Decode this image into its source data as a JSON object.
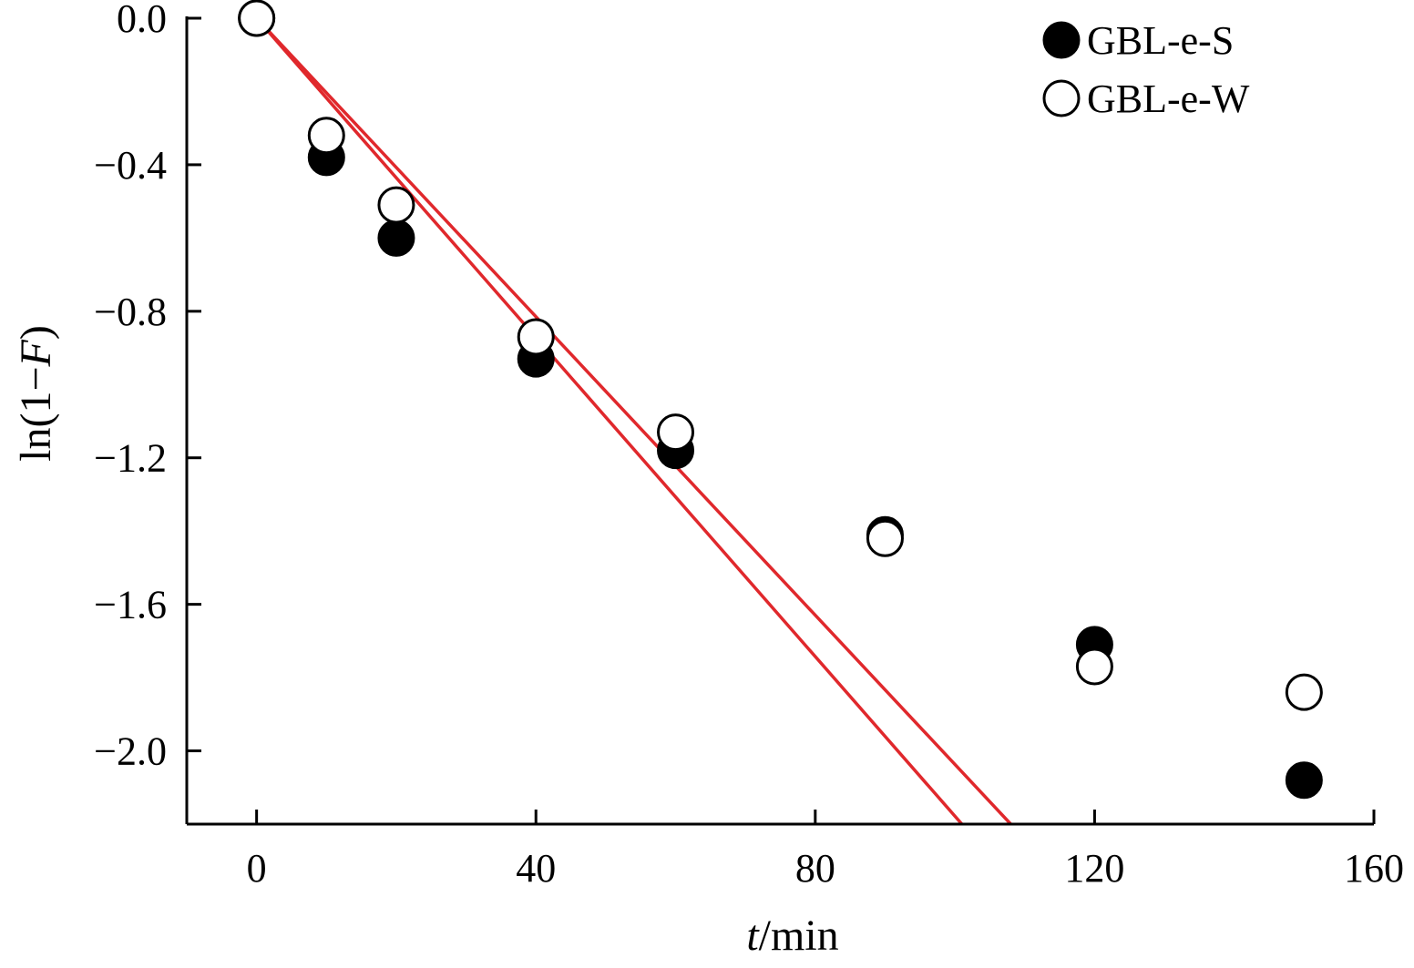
{
  "chart_data": {
    "type": "scatter",
    "xlabel": {
      "italic": "t",
      "rest": "/min"
    },
    "ylabel": {
      "pre": "ln(1−",
      "italic": "F",
      "post": ")"
    },
    "xlim": [
      -10,
      160
    ],
    "ylim": [
      -2.2,
      0.0
    ],
    "xticks": [
      0,
      40,
      80,
      120,
      160
    ],
    "xtick_labels": [
      "0",
      "40",
      "80",
      "120",
      "160"
    ],
    "yticks": [
      0.0,
      -0.4,
      -0.8,
      -1.2,
      -1.6,
      -2.0
    ],
    "ytick_labels": [
      "0.0",
      "−0.4",
      "−0.8",
      "−1.2",
      "−1.6",
      "−2.0"
    ],
    "grid": false,
    "legend_position": "top-right",
    "series": [
      {
        "name": "GBL-e-S",
        "marker": "filled-circle",
        "color": "#000000",
        "x": [
          0,
          10,
          20,
          40,
          60,
          90,
          120,
          150
        ],
        "y": [
          0.0,
          -0.38,
          -0.6,
          -0.93,
          -1.18,
          -1.41,
          -1.71,
          -2.08
        ]
      },
      {
        "name": "GBL-e-W",
        "marker": "open-circle",
        "color": "#000000",
        "x": [
          0,
          10,
          20,
          40,
          60,
          90,
          120,
          150
        ],
        "y": [
          0.0,
          -0.32,
          -0.51,
          -0.87,
          -1.13,
          -1.42,
          -1.77,
          -1.84
        ]
      }
    ],
    "fit_lines": [
      {
        "color": "#e0282c",
        "x": [
          0,
          101
        ],
        "y": [
          0.0,
          -2.2
        ]
      },
      {
        "color": "#e0282c",
        "x": [
          0,
          108
        ],
        "y": [
          0.0,
          -2.2
        ]
      }
    ]
  }
}
